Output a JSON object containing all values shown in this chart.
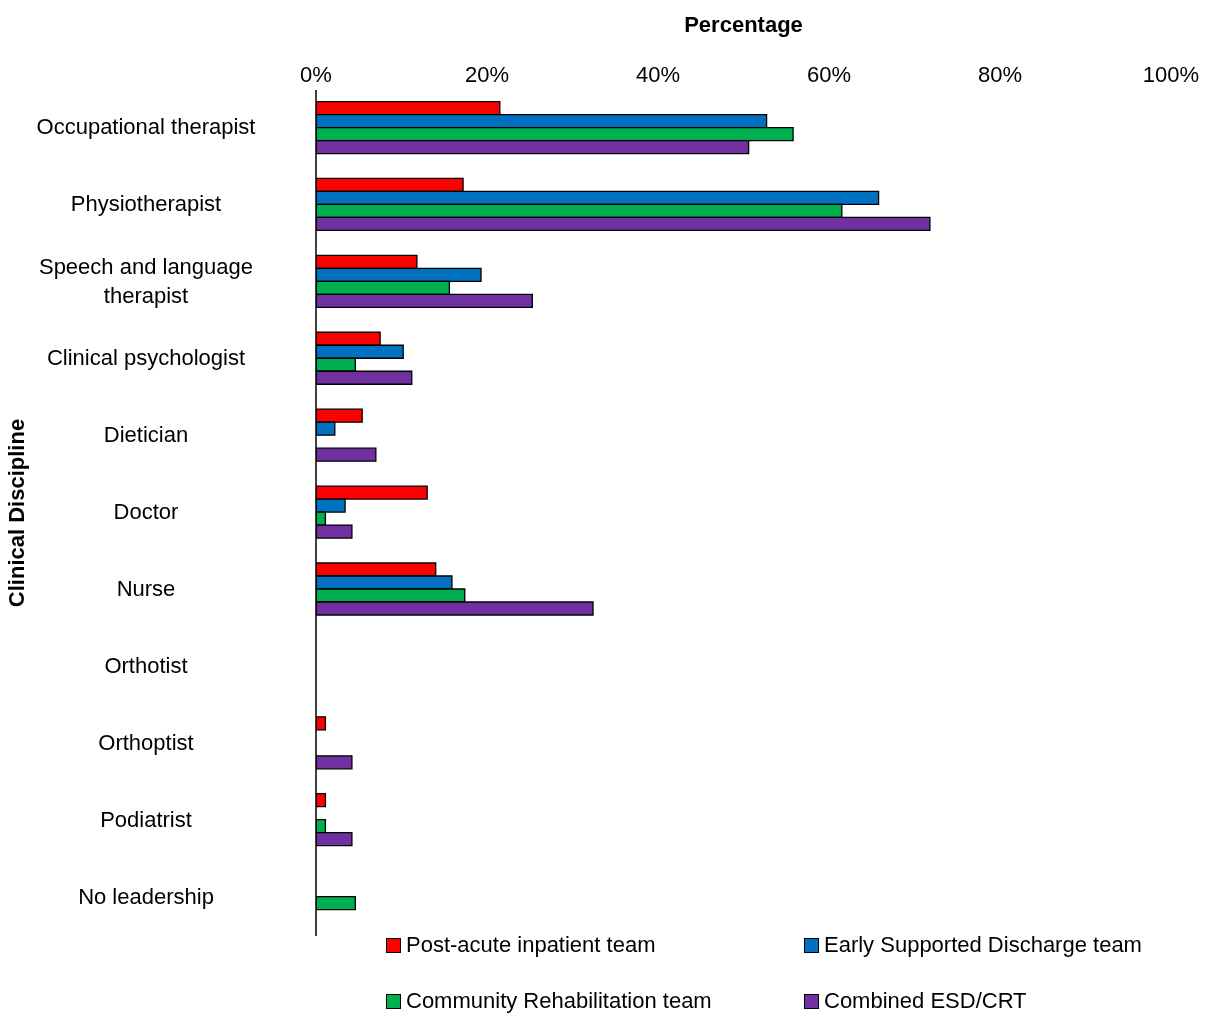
{
  "chart_data": {
    "type": "bar",
    "orientation": "horizontal",
    "xlabel": "Percentage",
    "ylabel": "Clinical Discipline",
    "categories": [
      "Occupational therapist",
      "Physiotherapist",
      "Speech and language therapist",
      "Clinical psychologist",
      "Dietician",
      "Doctor",
      "Nurse",
      "Orthotist",
      "Orthoptist",
      "Podiatrist",
      "No leadership"
    ],
    "series": [
      {
        "name": "Post-acute inpatient team",
        "color": "#ff0000",
        "values": [
          21.5,
          17.2,
          11.8,
          7.5,
          5.4,
          13.0,
          14.0,
          0,
          1.1,
          1.1,
          0
        ]
      },
      {
        "name": "Early Supported Discharge team",
        "color": "#0070c0",
        "values": [
          52.7,
          65.8,
          19.3,
          10.2,
          2.2,
          3.4,
          15.9,
          0,
          0,
          0,
          0
        ]
      },
      {
        "name": "Community Rehabilitation team",
        "color": "#00b050",
        "values": [
          55.8,
          61.5,
          15.6,
          4.6,
          0,
          1.1,
          17.4,
          0,
          0,
          1.1,
          4.6
        ]
      },
      {
        "name": "Combined ESD/CRT",
        "color": "#7030a0",
        "values": [
          50.6,
          71.8,
          25.3,
          11.2,
          7.0,
          4.2,
          32.4,
          0,
          4.2,
          4.2,
          0
        ]
      }
    ],
    "xlim": [
      0,
      100
    ],
    "xticks": [
      {
        "value": 0,
        "label": "0%"
      },
      {
        "value": 20,
        "label": "20%"
      },
      {
        "value": 40,
        "label": "40%"
      },
      {
        "value": 60,
        "label": "60%"
      },
      {
        "value": 80,
        "label": "80%"
      },
      {
        "value": 100,
        "label": "100%"
      }
    ],
    "grid": false,
    "legend": "bottom"
  }
}
